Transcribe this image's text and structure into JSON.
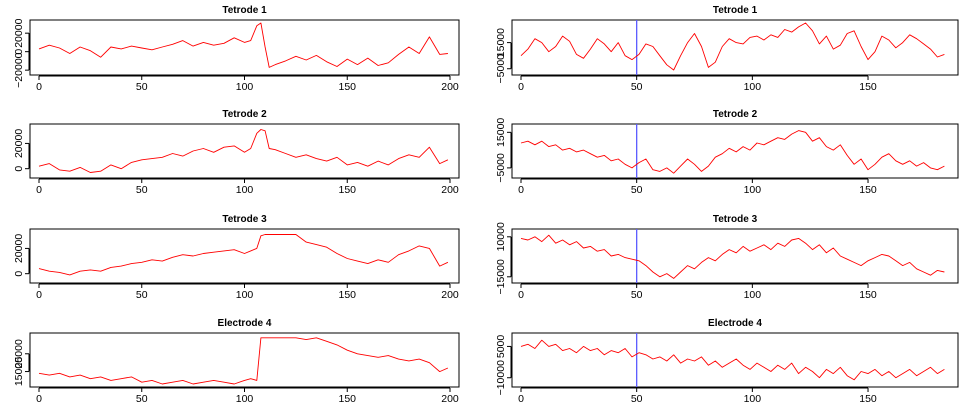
{
  "chart_data": [
    {
      "type": "line",
      "title": "Tetrode 1",
      "xlabel": "",
      "ylabel": "",
      "xlim": [
        0,
        200
      ],
      "ylim": [
        -22000,
        31000
      ],
      "x_ticks": [
        "0",
        "50",
        "100",
        "150",
        "200"
      ],
      "y_ticks": [
        {
          "value": -20000,
          "label": "−20000"
        },
        {
          "value": 0,
          "label": "0"
        },
        {
          "value": 20000,
          "label": "20000"
        }
      ],
      "vline": null,
      "series": [
        {
          "color": "#ff0000",
          "x": [
            0,
            5,
            10,
            15,
            20,
            25,
            30,
            35,
            40,
            45,
            50,
            55,
            60,
            65,
            70,
            75,
            80,
            85,
            90,
            95,
            100,
            103,
            106,
            108,
            110,
            112,
            115,
            120,
            125,
            130,
            135,
            140,
            145,
            150,
            155,
            160,
            165,
            170,
            175,
            180,
            185,
            190,
            195,
            199
          ],
          "values": [
            3000,
            7000,
            4000,
            -2000,
            5000,
            1000,
            -6000,
            5000,
            3000,
            6000,
            4000,
            2000,
            5000,
            8000,
            12000,
            6000,
            10000,
            7000,
            9000,
            15000,
            10000,
            12000,
            28000,
            31000,
            5000,
            -17000,
            -14000,
            -10000,
            -5000,
            -9000,
            -4000,
            -11000,
            -16000,
            -8000,
            -14000,
            -7000,
            -15000,
            -12000,
            -3000,
            5000,
            -2000,
            16000,
            -3000,
            -2000
          ]
        }
      ]
    },
    {
      "type": "line",
      "title": "Tetrode 1",
      "xlabel": "",
      "ylabel": "",
      "xlim": [
        0,
        185
      ],
      "ylim": [
        -7500,
        30000
      ],
      "x_ticks": [
        "0",
        "50",
        "100",
        "150"
      ],
      "y_ticks": [
        {
          "value": -5000,
          "label": "−5000"
        },
        {
          "value": 15000,
          "label": "15000"
        }
      ],
      "vline": 50,
      "series": [
        {
          "color": "#ff0000",
          "x": [
            0,
            3,
            6,
            9,
            12,
            15,
            18,
            21,
            24,
            27,
            30,
            33,
            36,
            39,
            42,
            45,
            48,
            51,
            54,
            57,
            60,
            63,
            66,
            69,
            72,
            75,
            78,
            81,
            84,
            87,
            90,
            93,
            96,
            99,
            102,
            105,
            108,
            111,
            114,
            117,
            120,
            123,
            126,
            129,
            132,
            135,
            138,
            141,
            144,
            147,
            150,
            153,
            156,
            159,
            162,
            165,
            168,
            171,
            174,
            177,
            180,
            183
          ],
          "values": [
            5000,
            10000,
            18000,
            15000,
            8000,
            12000,
            20000,
            16000,
            6000,
            3000,
            10000,
            18000,
            14000,
            8000,
            15000,
            5000,
            2000,
            6000,
            14000,
            12000,
            5000,
            -2000,
            -6000,
            5000,
            15000,
            22000,
            12000,
            -4000,
            0,
            12000,
            18000,
            15000,
            14000,
            19000,
            20000,
            17000,
            21000,
            19000,
            25000,
            23000,
            27000,
            30000,
            24000,
            14000,
            20000,
            10000,
            13000,
            22000,
            24000,
            12000,
            2000,
            8000,
            20000,
            17000,
            11000,
            15000,
            21000,
            18000,
            14000,
            10000,
            4000,
            6000
          ]
        }
      ]
    },
    {
      "type": "line",
      "title": "Tetrode 2",
      "xlabel": "",
      "ylabel": "",
      "xlim": [
        0,
        200
      ],
      "ylim": [
        -5000,
        33000
      ],
      "x_ticks": [
        "0",
        "50",
        "100",
        "150",
        "200"
      ],
      "y_ticks": [
        {
          "value": 0,
          "label": "0"
        },
        {
          "value": 20000,
          "label": "20000"
        }
      ],
      "vline": null,
      "series": [
        {
          "color": "#ff0000",
          "x": [
            0,
            5,
            10,
            15,
            20,
            25,
            30,
            35,
            40,
            45,
            50,
            55,
            60,
            65,
            70,
            75,
            80,
            85,
            90,
            95,
            100,
            103,
            106,
            108,
            110,
            112,
            115,
            120,
            125,
            130,
            135,
            140,
            145,
            150,
            155,
            160,
            165,
            170,
            175,
            180,
            185,
            190,
            195,
            199
          ],
          "values": [
            2000,
            4000,
            -1000,
            -2000,
            1000,
            -3000,
            -2000,
            3000,
            0,
            5000,
            7000,
            8000,
            9000,
            12000,
            10000,
            14000,
            16000,
            13000,
            17000,
            18000,
            13000,
            16000,
            28000,
            31000,
            30000,
            16000,
            15000,
            12000,
            9000,
            11000,
            8000,
            6000,
            9000,
            3000,
            5000,
            2000,
            6000,
            3000,
            8000,
            11000,
            9000,
            17000,
            4000,
            7000
          ]
        }
      ]
    },
    {
      "type": "line",
      "title": "Tetrode 2",
      "xlabel": "",
      "ylabel": "",
      "xlim": [
        0,
        185
      ],
      "ylim": [
        -9000,
        18000
      ],
      "x_ticks": [
        "0",
        "50",
        "100",
        "150"
      ],
      "y_ticks": [
        {
          "value": -5000,
          "label": "−5000"
        },
        {
          "value": 15000,
          "label": "15000"
        }
      ],
      "vline": 50,
      "series": [
        {
          "color": "#ff0000",
          "x": [
            0,
            3,
            6,
            9,
            12,
            15,
            18,
            21,
            24,
            27,
            30,
            33,
            36,
            39,
            42,
            45,
            48,
            51,
            54,
            57,
            60,
            63,
            66,
            69,
            72,
            75,
            78,
            81,
            84,
            87,
            90,
            93,
            96,
            99,
            102,
            105,
            108,
            111,
            114,
            117,
            120,
            123,
            126,
            129,
            132,
            135,
            138,
            141,
            144,
            147,
            150,
            153,
            156,
            159,
            162,
            165,
            168,
            171,
            174,
            177,
            180,
            183
          ],
          "values": [
            9000,
            10000,
            8000,
            10000,
            7000,
            8000,
            5000,
            6000,
            4000,
            5000,
            3000,
            1000,
            2000,
            -1000,
            0,
            -3000,
            -5000,
            -2000,
            0,
            -6000,
            -7000,
            -5000,
            -8000,
            -4000,
            0,
            -3000,
            -7000,
            -4000,
            1000,
            3000,
            6000,
            4000,
            7000,
            5000,
            9000,
            8000,
            10000,
            12000,
            11000,
            14000,
            16000,
            15000,
            10000,
            12000,
            7000,
            5000,
            8000,
            2000,
            -3000,
            0,
            -6000,
            -3000,
            1000,
            3000,
            -1000,
            -3000,
            -1000,
            -4000,
            -2000,
            -5000,
            -6000,
            -4000
          ]
        }
      ]
    },
    {
      "type": "line",
      "title": "Tetrode 3",
      "xlabel": "",
      "ylabel": "",
      "xlim": [
        0,
        200
      ],
      "ylim": [
        -5000,
        33000
      ],
      "x_ticks": [
        "0",
        "50",
        "100",
        "150",
        "200"
      ],
      "y_ticks": [
        {
          "value": 0,
          "label": "0"
        },
        {
          "value": 20000,
          "label": "20000"
        }
      ],
      "vline": null,
      "series": [
        {
          "color": "#ff0000",
          "x": [
            0,
            5,
            10,
            15,
            20,
            25,
            30,
            35,
            40,
            45,
            50,
            55,
            60,
            65,
            70,
            75,
            80,
            85,
            90,
            95,
            100,
            103,
            106,
            108,
            110,
            115,
            120,
            125,
            130,
            135,
            140,
            145,
            150,
            155,
            160,
            165,
            170,
            175,
            180,
            185,
            190,
            195,
            199
          ],
          "values": [
            4000,
            2000,
            1000,
            -1000,
            2000,
            3000,
            2000,
            5000,
            6000,
            8000,
            9000,
            11000,
            10000,
            13000,
            15000,
            14000,
            16000,
            17000,
            18000,
            19000,
            16000,
            18000,
            20000,
            30000,
            31000,
            31000,
            31000,
            31000,
            25000,
            23000,
            21000,
            16000,
            12000,
            10000,
            8000,
            11000,
            9000,
            15000,
            18000,
            22000,
            20000,
            6000,
            9000
          ]
        }
      ]
    },
    {
      "type": "line",
      "title": "Tetrode 3",
      "xlabel": "",
      "ylabel": "",
      "xlim": [
        0,
        185
      ],
      "ylim": [
        -17000,
        13000
      ],
      "x_ticks": [
        "0",
        "50",
        "100",
        "150"
      ],
      "y_ticks": [
        {
          "value": -15000,
          "label": "−15000"
        },
        {
          "value": 10000,
          "label": "10000"
        }
      ],
      "vline": 50,
      "series": [
        {
          "color": "#ff0000",
          "x": [
            0,
            3,
            6,
            9,
            12,
            15,
            18,
            21,
            24,
            27,
            30,
            33,
            36,
            39,
            42,
            45,
            48,
            51,
            54,
            57,
            60,
            63,
            66,
            69,
            72,
            75,
            78,
            81,
            84,
            87,
            90,
            93,
            96,
            99,
            102,
            105,
            108,
            111,
            114,
            117,
            120,
            123,
            126,
            129,
            132,
            135,
            138,
            141,
            144,
            147,
            150,
            153,
            156,
            159,
            162,
            165,
            168,
            171,
            174,
            177,
            180,
            183
          ],
          "values": [
            9000,
            8000,
            10000,
            7000,
            11000,
            6000,
            8000,
            5000,
            7000,
            3000,
            4000,
            1000,
            2000,
            -2000,
            -1000,
            -3000,
            -4000,
            -5000,
            -8000,
            -12000,
            -15000,
            -13000,
            -16000,
            -12000,
            -8000,
            -10000,
            -6000,
            -3000,
            -5000,
            -1000,
            2000,
            0,
            4000,
            1000,
            3000,
            5000,
            2000,
            6000,
            4000,
            8000,
            9000,
            6000,
            2000,
            5000,
            0,
            3000,
            -2000,
            -4000,
            -6000,
            -8000,
            -5000,
            -3000,
            -1000,
            -2000,
            -5000,
            -8000,
            -6000,
            -10000,
            -12000,
            -14000,
            -11000,
            -12000
          ]
        }
      ]
    },
    {
      "type": "line",
      "title": "Electrode 4",
      "xlabel": "",
      "ylabel": "",
      "xlim": [
        0,
        200
      ],
      "ylim": [
        8000,
        35000
      ],
      "x_ticks": [
        "0",
        "50",
        "100",
        "150",
        "200"
      ],
      "y_ticks": [
        {
          "value": 15000,
          "label": "15000"
        },
        {
          "value": 25000,
          "label": "25000"
        }
      ],
      "vline": null,
      "series": [
        {
          "color": "#ff0000",
          "x": [
            0,
            5,
            10,
            15,
            20,
            25,
            30,
            35,
            40,
            45,
            50,
            55,
            60,
            65,
            70,
            75,
            80,
            85,
            90,
            95,
            100,
            103,
            106,
            108,
            110,
            115,
            120,
            125,
            130,
            135,
            140,
            145,
            150,
            155,
            160,
            165,
            170,
            175,
            180,
            185,
            190,
            195,
            199
          ],
          "values": [
            14000,
            13000,
            14000,
            12000,
            13000,
            11000,
            12000,
            10000,
            11000,
            12000,
            9000,
            10000,
            8000,
            9000,
            10000,
            8000,
            9000,
            10000,
            9000,
            8000,
            10000,
            11000,
            10000,
            34000,
            34000,
            34000,
            34000,
            34000,
            33000,
            34000,
            32000,
            30000,
            27000,
            25000,
            24000,
            23000,
            24000,
            22000,
            21000,
            22000,
            20000,
            15000,
            17000
          ]
        }
      ]
    },
    {
      "type": "line",
      "title": "Electrode 4",
      "xlabel": "",
      "ylabel": "",
      "xlim": [
        0,
        185
      ],
      "ylim": [
        -13000,
        10000
      ],
      "x_ticks": [
        "0",
        "50",
        "100",
        "150"
      ],
      "y_ticks": [
        {
          "value": -10000,
          "label": "−10000"
        },
        {
          "value": 5000,
          "label": "5000"
        }
      ],
      "vline": 50,
      "series": [
        {
          "color": "#ff0000",
          "x": [
            0,
            3,
            6,
            9,
            12,
            15,
            18,
            21,
            24,
            27,
            30,
            33,
            36,
            39,
            42,
            45,
            48,
            51,
            54,
            57,
            60,
            63,
            66,
            69,
            72,
            75,
            78,
            81,
            84,
            87,
            90,
            93,
            96,
            99,
            102,
            105,
            108,
            111,
            114,
            117,
            120,
            123,
            126,
            129,
            132,
            135,
            138,
            141,
            144,
            147,
            150,
            153,
            156,
            159,
            162,
            165,
            168,
            171,
            174,
            177,
            180,
            183
          ],
          "values": [
            5000,
            6000,
            4000,
            8000,
            5000,
            6000,
            3000,
            4000,
            2000,
            5000,
            3000,
            4000,
            1000,
            3000,
            2000,
            4000,
            0,
            2000,
            1000,
            -1000,
            0,
            -2000,
            1000,
            -3000,
            -1000,
            -2000,
            0,
            -4000,
            -2000,
            -5000,
            -3000,
            -1000,
            -4000,
            -6000,
            -3000,
            -5000,
            -7000,
            -4000,
            -6000,
            -3000,
            -8000,
            -5000,
            -7000,
            -10000,
            -6000,
            -8000,
            -5000,
            -9000,
            -11000,
            -7000,
            -8000,
            -6000,
            -9000,
            -7000,
            -10000,
            -8000,
            -6000,
            -9000,
            -7000,
            -5000,
            -8000,
            -6000
          ]
        }
      ]
    }
  ]
}
